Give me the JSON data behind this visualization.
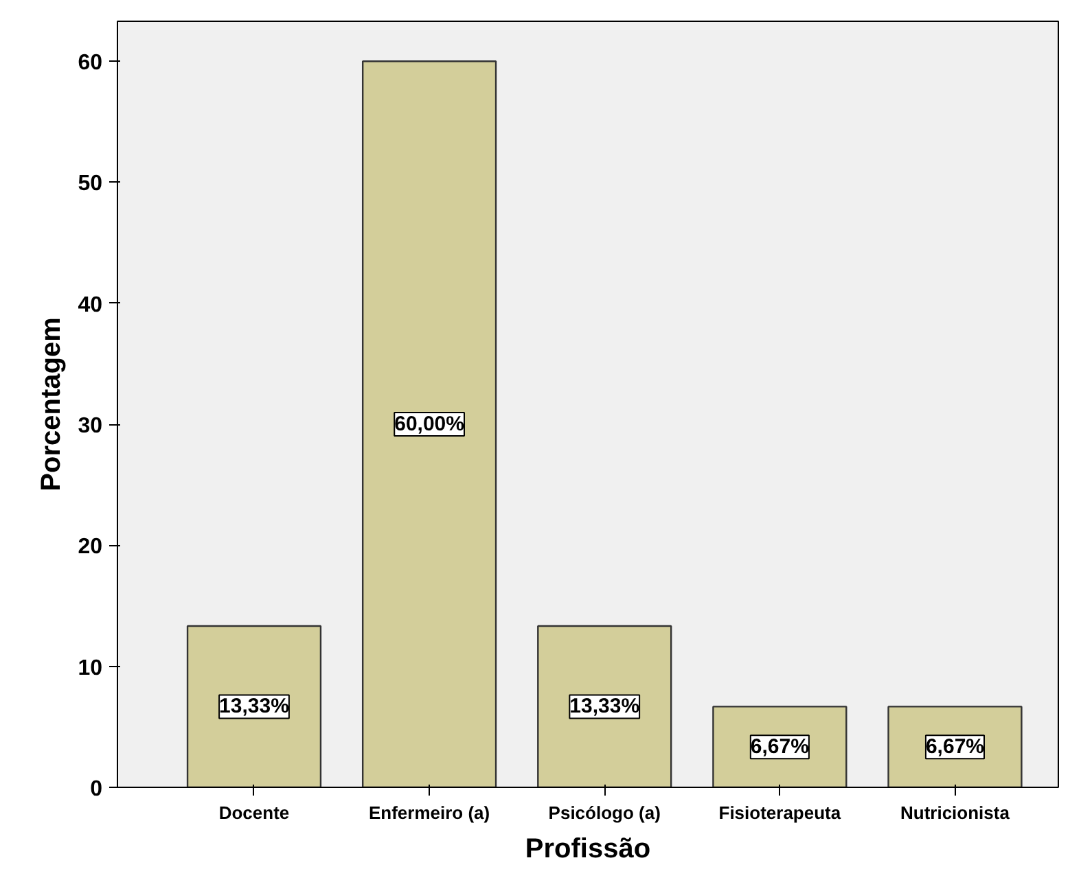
{
  "chart_data": {
    "type": "bar",
    "xlabel": "Profissão",
    "ylabel": "Porcentagem",
    "categories": [
      "Docente",
      "Enfermeiro (a)",
      "Psicólogo (a)",
      "Fisioterapeuta",
      "Nutricionista"
    ],
    "values": [
      13.33,
      60.0,
      13.33,
      6.67,
      6.67
    ],
    "value_labels": [
      "13,33%",
      "60,00%",
      "13,33%",
      "6,67%",
      "6,67%"
    ],
    "color": "#d3ce9a",
    "ylim": [
      0,
      63.3
    ],
    "yticks": [
      0,
      10,
      20,
      30,
      40,
      50,
      60
    ],
    "grid": false
  }
}
